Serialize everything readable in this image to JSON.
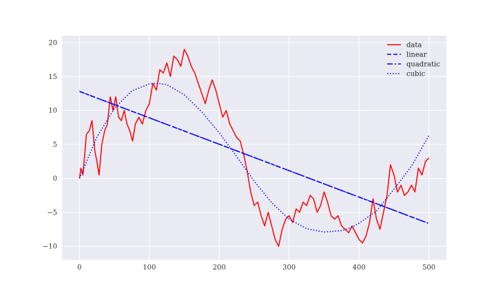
{
  "colors": {
    "background": "#ffffff",
    "plot_background": "#eaeaf2",
    "grid": "#ffffff",
    "data": "#ff0000",
    "fit": "#0000ff"
  },
  "chart_data": {
    "type": "line",
    "title": "",
    "xlabel": "",
    "ylabel": "",
    "xlim": [
      -25,
      525
    ],
    "ylim": [
      -12,
      21
    ],
    "xticks": [
      0,
      100,
      200,
      300,
      400,
      500
    ],
    "yticks": [
      -10,
      -5,
      0,
      5,
      10,
      15,
      20
    ],
    "xtick_labels": [
      "0",
      "100",
      "200",
      "300",
      "400",
      "500"
    ],
    "ytick_labels": [
      "−10",
      "−5",
      "0",
      "5",
      "10",
      "15",
      "20"
    ],
    "grid": true,
    "legend": "upper right",
    "series": [
      {
        "name": "data",
        "color": "#ff0000",
        "linestyle": "solid",
        "x": [
          0,
          2,
          5,
          10,
          14,
          18,
          22,
          25,
          28,
          32,
          36,
          40,
          44,
          48,
          52,
          56,
          60,
          64,
          68,
          72,
          76,
          80,
          85,
          90,
          95,
          100,
          105,
          110,
          115,
          120,
          125,
          130,
          135,
          140,
          145,
          150,
          155,
          160,
          165,
          170,
          175,
          180,
          185,
          190,
          195,
          200,
          205,
          210,
          215,
          220,
          225,
          230,
          235,
          240,
          245,
          250,
          255,
          260,
          265,
          270,
          275,
          280,
          285,
          290,
          295,
          300,
          305,
          310,
          315,
          320,
          325,
          330,
          335,
          340,
          345,
          350,
          355,
          360,
          365,
          370,
          375,
          380,
          385,
          390,
          395,
          400,
          405,
          410,
          415,
          420,
          425,
          430,
          435,
          440,
          445,
          450,
          455,
          460,
          465,
          470,
          475,
          480,
          485,
          490,
          495,
          500
        ],
        "y": [
          0,
          1.5,
          0.5,
          6.5,
          7,
          8.5,
          4,
          2.5,
          0.5,
          5,
          7,
          8,
          12,
          10,
          12,
          9,
          8.5,
          10,
          8,
          7,
          5.5,
          8,
          9,
          8,
          10,
          11,
          14,
          13,
          16,
          15.5,
          17,
          15,
          18,
          17.5,
          16.5,
          19,
          18,
          16.5,
          15.5,
          14,
          12.5,
          11,
          13,
          14.5,
          13,
          11,
          9,
          10,
          8,
          7,
          6,
          5.5,
          3.5,
          1,
          -2,
          -4,
          -3.5,
          -5.5,
          -7,
          -5,
          -7,
          -9,
          -10,
          -7.5,
          -6,
          -5.5,
          -6.5,
          -4.5,
          -5,
          -3.5,
          -4,
          -2.5,
          -3,
          -5,
          -4,
          -2,
          -3.5,
          -5.5,
          -6,
          -5.5,
          -7,
          -7.5,
          -8,
          -7,
          -8,
          -9,
          -9.5,
          -8.5,
          -6.5,
          -3,
          -6,
          -7.5,
          -5,
          -2.5,
          2,
          0.5,
          -2,
          -1,
          -2.5,
          -2,
          -1,
          -2,
          1.5,
          0.5,
          2.5,
          3
        ]
      },
      {
        "name": "linear",
        "color": "#0000ff",
        "linestyle": "dashed",
        "x": [
          0,
          499
        ],
        "y": [
          12.8,
          -6.6
        ]
      },
      {
        "name": "quadratic",
        "color": "#0000ff",
        "linestyle": "dashdot",
        "x": [
          0,
          499
        ],
        "y": [
          12.8,
          -6.6
        ]
      },
      {
        "name": "cubic",
        "color": "#0000ff",
        "linestyle": "dotted",
        "x": [
          0,
          25,
          50,
          75,
          100,
          112,
          125,
          150,
          175,
          200,
          225,
          250,
          275,
          300,
          325,
          350,
          375,
          387,
          400,
          425,
          450,
          475,
          500
        ],
        "y": [
          0,
          6.1,
          10.3,
          12.9,
          13.9,
          14.0,
          13.8,
          12.3,
          9.8,
          6.7,
          3.2,
          -0.4,
          -3.6,
          -6.0,
          -7.4,
          -7.9,
          -7.7,
          -7.3,
          -6.6,
          -4.8,
          -1.6,
          1.8,
          6.3
        ]
      }
    ]
  }
}
